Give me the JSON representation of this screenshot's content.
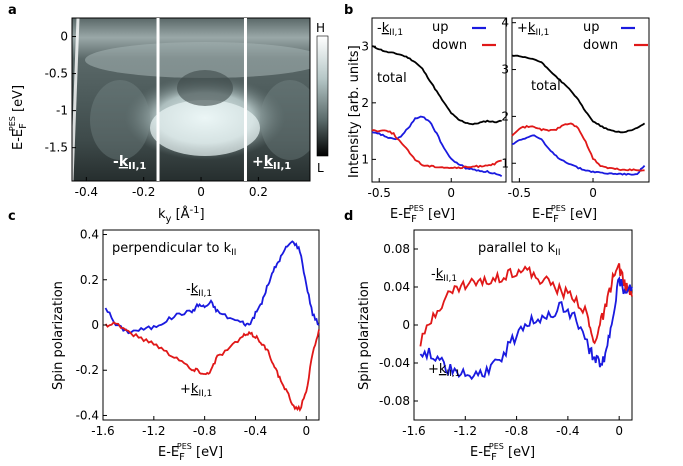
{
  "panels": {
    "a": {
      "letter": "a",
      "xlabel": "k",
      "xlabel_sub": "y",
      "xlabel_unit": " [Å",
      "xlabel_exp": "-1",
      "xlabel_close": "]",
      "ylabel": "E-E",
      "ylabel_sub": "F",
      "ylabel_sup": "PES",
      "ylabel_unit": " [eV]",
      "xticks": [
        "-0.4",
        "-0.2",
        "0",
        "0.2"
      ],
      "yticks": [
        "0",
        "-0.5",
        "-1",
        "-1.5"
      ],
      "markers": [
        {
          "sign": "-",
          "k": "k",
          "sub": "II,1",
          "x": -0.15
        },
        {
          "sign": "+",
          "k": "k",
          "sub": "II,1",
          "x": 0.155
        }
      ],
      "colorbar_high": "H",
      "colorbar_low": "L"
    },
    "b": {
      "letter": "b",
      "ylabel": "Intensity [arb. units]",
      "xlabel": "E-E",
      "xlabel_sub": "F",
      "xlabel_sup": "PES",
      "xlabel_unit": " [eV]",
      "left": {
        "header_sign": "-",
        "header_k": "k",
        "header_sub": "II,1",
        "xticks": [
          "-0.5",
          "0"
        ],
        "yticks": [
          "1",
          "2",
          "3"
        ],
        "total_label": "total"
      },
      "right": {
        "header_sign": "+",
        "header_k": "k",
        "header_sub": "II,1",
        "xticks": [
          "-0.5",
          "0"
        ],
        "yticks": [
          "1",
          "2",
          "3",
          "4"
        ],
        "total_label": "total"
      },
      "legend": {
        "up": "up",
        "down": "down"
      }
    },
    "c": {
      "letter": "c",
      "title": "perpendicular to k",
      "title_sub": "II",
      "ylabel": "Spin polarization",
      "xlabel": "E-E",
      "xlabel_sub": "F",
      "xlabel_sup": "PES",
      "xlabel_unit": " [eV]",
      "xticks": [
        "-1.6",
        "-1.2",
        "-0.8",
        "-0.4",
        "0"
      ],
      "yticks": [
        "0.4",
        "0.2",
        "0",
        "-0.2",
        "-0.4"
      ],
      "minus_label": {
        "sign": "-",
        "k": "k",
        "sub": "II,1"
      },
      "plus_label": {
        "sign": "+",
        "k": "k",
        "sub": "II,1"
      }
    },
    "d": {
      "letter": "d",
      "title": "parallel to k",
      "title_sub": "II",
      "ylabel": "Spin polarization",
      "xlabel": "E-E",
      "xlabel_sub": "F",
      "xlabel_sup": "PES",
      "xlabel_unit": " [eV]",
      "xticks": [
        "-1.6",
        "-1.2",
        "-0.8",
        "-0.4",
        "0"
      ],
      "yticks": [
        "0.08",
        "0.04",
        "0",
        "-0.04",
        "-0.08"
      ],
      "minus_label": {
        "sign": "-",
        "k": "k",
        "sub": "II,1"
      },
      "plus_label": {
        "sign": "+",
        "k": "k",
        "sub": "II,1"
      }
    }
  },
  "colors": {
    "up": "#1a1adf",
    "down": "#e01818",
    "total": "#000000"
  },
  "chart_data": [
    {
      "panel": "a",
      "type": "heatmap",
      "xlim": [
        -0.45,
        0.38
      ],
      "ylim": [
        -1.95,
        0.25
      ],
      "description_series": "intensity map vs k_y and energy"
    },
    {
      "panel": "b-left",
      "type": "line",
      "xlim": [
        -0.55,
        0.38
      ],
      "ylim": [
        0.6,
        3.5
      ],
      "series": [
        {
          "name": "total",
          "x": [
            -0.55,
            -0.5,
            -0.45,
            -0.4,
            -0.35,
            -0.3,
            -0.25,
            -0.2,
            -0.15,
            -0.1,
            -0.05,
            0,
            0.05,
            0.1,
            0.15,
            0.2,
            0.25,
            0.3,
            0.35
          ],
          "values": [
            3.0,
            2.95,
            2.9,
            2.88,
            2.85,
            2.8,
            2.72,
            2.6,
            2.4,
            2.2,
            2.0,
            1.82,
            1.7,
            1.65,
            1.62,
            1.65,
            1.68,
            1.66,
            1.68
          ]
        },
        {
          "name": "up",
          "x": [
            -0.55,
            -0.5,
            -0.45,
            -0.4,
            -0.35,
            -0.3,
            -0.25,
            -0.2,
            -0.15,
            -0.1,
            -0.05,
            0,
            0.05,
            0.1,
            0.15,
            0.2,
            0.25,
            0.3,
            0.35
          ],
          "values": [
            1.47,
            1.45,
            1.4,
            1.35,
            1.4,
            1.55,
            1.72,
            1.75,
            1.68,
            1.45,
            1.2,
            1.0,
            0.92,
            0.85,
            0.82,
            0.8,
            0.78,
            0.75,
            0.7
          ]
        },
        {
          "name": "down",
          "x": [
            -0.55,
            -0.5,
            -0.45,
            -0.4,
            -0.35,
            -0.3,
            -0.25,
            -0.2,
            -0.15,
            -0.1,
            -0.05,
            0,
            0.05,
            0.1,
            0.15,
            0.2,
            0.25,
            0.3,
            0.35
          ],
          "values": [
            1.52,
            1.5,
            1.52,
            1.45,
            1.3,
            1.15,
            1.0,
            0.9,
            0.88,
            0.87,
            0.86,
            0.85,
            0.85,
            0.86,
            0.87,
            0.88,
            0.9,
            0.92,
            0.98
          ]
        }
      ]
    },
    {
      "panel": "b-right",
      "type": "line",
      "xlim": [
        -0.55,
        0.38
      ],
      "ylim": [
        0.6,
        4.1
      ],
      "series": [
        {
          "name": "total",
          "x": [
            -0.55,
            -0.5,
            -0.45,
            -0.4,
            -0.35,
            -0.3,
            -0.25,
            -0.2,
            -0.15,
            -0.1,
            -0.05,
            0,
            0.05,
            0.1,
            0.15,
            0.2,
            0.25,
            0.3,
            0.35
          ],
          "values": [
            3.3,
            3.28,
            3.25,
            3.22,
            3.15,
            3.0,
            2.85,
            2.7,
            2.55,
            2.35,
            2.1,
            1.9,
            1.8,
            1.72,
            1.68,
            1.66,
            1.7,
            1.75,
            1.85
          ]
        },
        {
          "name": "up",
          "x": [
            -0.55,
            -0.5,
            -0.45,
            -0.4,
            -0.35,
            -0.3,
            -0.25,
            -0.2,
            -0.15,
            -0.1,
            -0.05,
            0,
            0.05,
            0.1,
            0.15,
            0.2,
            0.25,
            0.3,
            0.35
          ],
          "values": [
            1.4,
            1.5,
            1.55,
            1.6,
            1.5,
            1.3,
            1.15,
            1.05,
            0.98,
            0.9,
            0.85,
            0.82,
            0.8,
            0.78,
            0.78,
            0.77,
            0.76,
            0.78,
            0.95
          ]
        },
        {
          "name": "down",
          "x": [
            -0.55,
            -0.5,
            -0.45,
            -0.4,
            -0.35,
            -0.3,
            -0.25,
            -0.2,
            -0.15,
            -0.1,
            -0.05,
            0,
            0.05,
            0.1,
            0.15,
            0.2,
            0.25,
            0.3,
            0.35
          ],
          "values": [
            1.6,
            1.75,
            1.78,
            1.78,
            1.72,
            1.7,
            1.72,
            1.82,
            1.85,
            1.75,
            1.45,
            1.1,
            0.95,
            0.9,
            0.88,
            0.86,
            0.86,
            0.85,
            0.85
          ]
        }
      ]
    },
    {
      "panel": "c",
      "type": "line",
      "xlim": [
        -1.6,
        0.1
      ],
      "ylim": [
        -0.42,
        0.42
      ],
      "series": [
        {
          "name": "-k_II,1",
          "x": [
            -1.58,
            -1.5,
            -1.4,
            -1.3,
            -1.2,
            -1.1,
            -1.0,
            -0.9,
            -0.85,
            -0.8,
            -0.75,
            -0.7,
            -0.6,
            -0.5,
            -0.45,
            -0.4,
            -0.35,
            -0.3,
            -0.25,
            -0.2,
            -0.15,
            -0.1,
            -0.05,
            0,
            0.05,
            0.1
          ],
          "values": [
            0.08,
            0.0,
            -0.03,
            -0.02,
            -0.01,
            0.02,
            0.05,
            0.06,
            0.09,
            0.08,
            0.1,
            0.06,
            0.03,
            0.01,
            0.0,
            0.05,
            0.1,
            0.18,
            0.25,
            0.3,
            0.35,
            0.37,
            0.33,
            0.18,
            0.05,
            0.0
          ]
        },
        {
          "name": "+k_II,1",
          "x": [
            -1.58,
            -1.5,
            -1.4,
            -1.3,
            -1.2,
            -1.1,
            -1.0,
            -0.9,
            -0.85,
            -0.8,
            -0.75,
            -0.7,
            -0.6,
            -0.5,
            -0.45,
            -0.4,
            -0.35,
            -0.3,
            -0.25,
            -0.2,
            -0.15,
            -0.1,
            -0.05,
            0,
            0.05,
            0.1
          ],
          "values": [
            0.0,
            0.01,
            -0.03,
            -0.06,
            -0.08,
            -0.12,
            -0.15,
            -0.2,
            -0.2,
            -0.22,
            -0.2,
            -0.14,
            -0.1,
            -0.05,
            -0.04,
            -0.05,
            -0.08,
            -0.12,
            -0.18,
            -0.25,
            -0.3,
            -0.36,
            -0.37,
            -0.3,
            -0.12,
            -0.02
          ]
        }
      ]
    },
    {
      "panel": "d",
      "type": "line",
      "xlim": [
        -1.6,
        0.1
      ],
      "ylim": [
        -0.1,
        0.1
      ],
      "series": [
        {
          "name": "-k_II,1",
          "x": [
            -1.55,
            -1.45,
            -1.35,
            -1.25,
            -1.15,
            -1.05,
            -0.95,
            -0.85,
            -0.75,
            -0.65,
            -0.55,
            -0.45,
            -0.35,
            -0.25,
            -0.2,
            -0.15,
            -0.1,
            -0.05,
            0,
            0.05,
            0.1
          ],
          "values": [
            -0.02,
            0.01,
            0.03,
            0.04,
            0.045,
            0.045,
            0.05,
            0.055,
            0.06,
            0.05,
            0.045,
            0.035,
            0.03,
            0.01,
            -0.02,
            0.0,
            0.02,
            0.05,
            0.06,
            0.04,
            0.03
          ]
        },
        {
          "name": "+k_II,1",
          "x": [
            -1.55,
            -1.45,
            -1.35,
            -1.25,
            -1.15,
            -1.05,
            -0.95,
            -0.85,
            -0.75,
            -0.65,
            -0.55,
            -0.45,
            -0.35,
            -0.25,
            -0.2,
            -0.15,
            -0.1,
            -0.05,
            0,
            0.05,
            0.1
          ],
          "values": [
            -0.03,
            -0.03,
            -0.045,
            -0.05,
            -0.055,
            -0.05,
            -0.04,
            -0.02,
            0.0,
            0.005,
            0.01,
            0.02,
            0.01,
            -0.02,
            -0.035,
            -0.04,
            -0.03,
            0.01,
            0.05,
            0.03,
            0.04
          ]
        }
      ]
    }
  ]
}
